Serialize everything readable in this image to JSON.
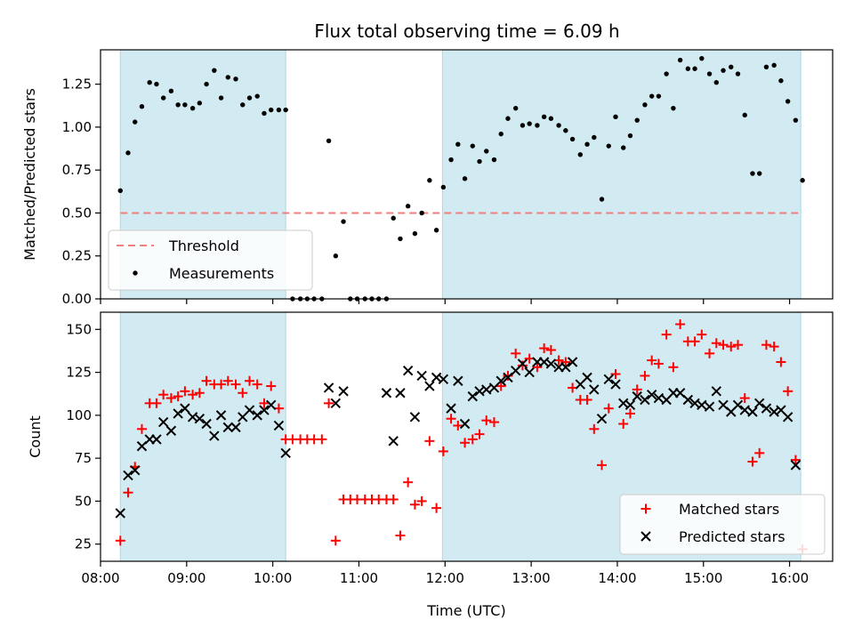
{
  "title": "Flux total observing time = 6.09 h",
  "colors": {
    "shade": "#add8e6",
    "threshold": "#f07e7e",
    "measurement": "#000000",
    "matched": "#ff0000",
    "predicted": "#000000"
  },
  "chart_data": [
    {
      "type": "scatter",
      "panel": "top",
      "ylabel": "Matched/Predicted stars",
      "xlim": [
        8.0,
        16.5
      ],
      "ylim": [
        0,
        1.45
      ],
      "yticks": [
        0.0,
        0.25,
        0.5,
        0.75,
        1.0,
        1.25
      ],
      "ytick_labels": [
        "0.00",
        "0.25",
        "0.50",
        "0.75",
        "1.00",
        "1.25"
      ],
      "shaded_spans": [
        [
          8.23,
          10.15
        ],
        [
          11.97,
          16.13
        ]
      ],
      "threshold": {
        "name": "Threshold",
        "y": 0.5,
        "x_range": [
          8.23,
          16.13
        ]
      },
      "legend": {
        "position": "lower-left",
        "entries": [
          "Threshold",
          "Measurements"
        ]
      },
      "series": [
        {
          "name": "Measurements",
          "x": [
            8.23,
            8.32,
            8.4,
            8.48,
            8.57,
            8.65,
            8.73,
            8.82,
            8.9,
            8.98,
            9.07,
            9.15,
            9.23,
            9.32,
            9.4,
            9.48,
            9.57,
            9.65,
            9.73,
            9.82,
            9.9,
            9.98,
            10.07,
            10.15,
            10.23,
            10.32,
            10.4,
            10.48,
            10.57,
            10.65,
            10.73,
            10.82,
            10.9,
            10.98,
            11.07,
            11.15,
            11.23,
            11.32,
            11.4,
            11.48,
            11.57,
            11.65,
            11.73,
            11.82,
            11.9,
            11.98,
            12.07,
            12.15,
            12.23,
            12.32,
            12.4,
            12.48,
            12.57,
            12.65,
            12.73,
            12.82,
            12.9,
            12.98,
            13.07,
            13.15,
            13.23,
            13.32,
            13.4,
            13.48,
            13.57,
            13.65,
            13.73,
            13.82,
            13.9,
            13.98,
            14.07,
            14.15,
            14.23,
            14.32,
            14.4,
            14.48,
            14.57,
            14.65,
            14.73,
            14.82,
            14.9,
            14.98,
            15.07,
            15.15,
            15.23,
            15.32,
            15.4,
            15.48,
            15.57,
            15.65,
            15.73,
            15.82,
            15.9,
            15.98,
            16.07,
            16.15
          ],
          "y": [
            0.63,
            0.85,
            1.03,
            1.12,
            1.26,
            1.25,
            1.17,
            1.21,
            1.13,
            1.13,
            1.11,
            1.14,
            1.25,
            1.33,
            1.17,
            1.29,
            1.28,
            1.13,
            1.17,
            1.18,
            1.08,
            1.1,
            1.1,
            1.1,
            0.0,
            0.0,
            0.0,
            0.0,
            0.0,
            0.92,
            0.25,
            0.45,
            0.0,
            0.0,
            0.0,
            0.0,
            0.0,
            0.0,
            0.47,
            0.35,
            0.54,
            0.38,
            0.5,
            0.69,
            0.4,
            0.65,
            0.81,
            0.9,
            0.7,
            0.89,
            0.8,
            0.86,
            0.81,
            0.96,
            1.05,
            1.11,
            1.01,
            1.02,
            1.01,
            1.06,
            1.05,
            1.01,
            0.98,
            0.93,
            0.84,
            0.9,
            0.94,
            0.58,
            0.89,
            1.06,
            0.88,
            0.95,
            1.04,
            1.13,
            1.18,
            1.18,
            1.31,
            1.11,
            1.39,
            1.34,
            1.34,
            1.4,
            1.31,
            1.26,
            1.33,
            1.35,
            1.31,
            1.07,
            0.73,
            0.73,
            1.35,
            1.36,
            1.27,
            1.15,
            1.04,
            0.69
          ]
        }
      ]
    },
    {
      "type": "scatter",
      "panel": "bottom",
      "xlabel": "Time (UTC)",
      "ylabel": "Count",
      "xlim": [
        8.0,
        16.5
      ],
      "ylim": [
        15,
        160
      ],
      "xticks": [
        8,
        9,
        10,
        11,
        12,
        13,
        14,
        15,
        16
      ],
      "xtick_labels": [
        "08:00",
        "09:00",
        "10:00",
        "11:00",
        "12:00",
        "13:00",
        "14:00",
        "15:00",
        "16:00"
      ],
      "yticks": [
        25,
        50,
        75,
        100,
        125,
        150
      ],
      "ytick_labels": [
        "25",
        "50",
        "75",
        "100",
        "125",
        "150"
      ],
      "shaded_spans": [
        [
          8.23,
          10.15
        ],
        [
          11.97,
          16.13
        ]
      ],
      "legend": {
        "position": "lower-right",
        "entries": [
          "Matched stars",
          "Predicted stars"
        ]
      },
      "series": [
        {
          "name": "Matched stars",
          "marker": "+",
          "x": [
            8.23,
            8.32,
            8.4,
            8.48,
            8.57,
            8.65,
            8.73,
            8.82,
            8.9,
            8.98,
            9.07,
            9.15,
            9.23,
            9.32,
            9.4,
            9.48,
            9.57,
            9.65,
            9.73,
            9.82,
            9.9,
            9.98,
            10.07,
            10.15,
            10.23,
            10.32,
            10.4,
            10.48,
            10.57,
            10.65,
            10.73,
            10.82,
            10.9,
            10.98,
            11.07,
            11.15,
            11.23,
            11.32,
            11.4,
            11.48,
            11.57,
            11.65,
            11.73,
            11.82,
            11.9,
            11.98,
            12.07,
            12.15,
            12.23,
            12.32,
            12.4,
            12.48,
            12.57,
            12.65,
            12.73,
            12.82,
            12.9,
            12.98,
            13.07,
            13.15,
            13.23,
            13.32,
            13.4,
            13.48,
            13.57,
            13.65,
            13.73,
            13.82,
            13.9,
            13.98,
            14.07,
            14.15,
            14.23,
            14.32,
            14.4,
            14.48,
            14.57,
            14.65,
            14.73,
            14.82,
            14.9,
            14.98,
            15.07,
            15.15,
            15.23,
            15.32,
            15.4,
            15.48,
            15.57,
            15.65,
            15.73,
            15.82,
            15.9,
            15.98,
            16.07,
            16.15
          ],
          "y": [
            27,
            55,
            70,
            92,
            107,
            107,
            112,
            110,
            111,
            114,
            112,
            113,
            120,
            118,
            118,
            120,
            118,
            113,
            120,
            118,
            107,
            117,
            104,
            86,
            86,
            86,
            86,
            86,
            86,
            107,
            27,
            51,
            51,
            51,
            51,
            51,
            51,
            51,
            51,
            30,
            61,
            48,
            50,
            85,
            46,
            79,
            98,
            94,
            84,
            86,
            89,
            97,
            96,
            117,
            123,
            136,
            129,
            133,
            128,
            139,
            138,
            132,
            131,
            116,
            109,
            109,
            92,
            71,
            104,
            124,
            95,
            101,
            115,
            123,
            132,
            130,
            147,
            128,
            153,
            143,
            143,
            147,
            136,
            142,
            141,
            140,
            141,
            110,
            73,
            78,
            141,
            140,
            131,
            114,
            74,
            22
          ]
        },
        {
          "name": "Predicted stars",
          "marker": "x",
          "x": [
            8.23,
            8.32,
            8.4,
            8.48,
            8.57,
            8.65,
            8.73,
            8.82,
            8.9,
            8.98,
            9.07,
            9.15,
            9.23,
            9.32,
            9.4,
            9.48,
            9.57,
            9.65,
            9.73,
            9.82,
            9.9,
            9.98,
            10.07,
            10.15,
            10.65,
            10.73,
            10.82,
            11.32,
            11.4,
            11.48,
            11.57,
            11.65,
            11.73,
            11.82,
            11.9,
            11.98,
            12.07,
            12.15,
            12.23,
            12.32,
            12.4,
            12.48,
            12.57,
            12.65,
            12.73,
            12.82,
            12.9,
            12.98,
            13.07,
            13.15,
            13.23,
            13.32,
            13.4,
            13.48,
            13.57,
            13.65,
            13.73,
            13.82,
            13.9,
            13.98,
            14.07,
            14.15,
            14.23,
            14.32,
            14.4,
            14.48,
            14.57,
            14.65,
            14.73,
            14.82,
            14.9,
            14.98,
            15.07,
            15.15,
            15.23,
            15.32,
            15.4,
            15.48,
            15.57,
            15.65,
            15.73,
            15.82,
            15.9,
            15.98,
            16.07
          ],
          "y": [
            43,
            65,
            68,
            82,
            86,
            86,
            96,
            91,
            101,
            104,
            99,
            98,
            95,
            88,
            100,
            93,
            93,
            99,
            103,
            100,
            103,
            106,
            94,
            78,
            116,
            107,
            114,
            113,
            85,
            113,
            126,
            99,
            123,
            117,
            122,
            121,
            104,
            120,
            95,
            111,
            114,
            115,
            116,
            120,
            122,
            126,
            130,
            125,
            131,
            131,
            130,
            128,
            128,
            131,
            118,
            122,
            115,
            98,
            121,
            118,
            107,
            106,
            111,
            109,
            112,
            110,
            109,
            113,
            113,
            109,
            107,
            106,
            105,
            114,
            106,
            102,
            106,
            103,
            102,
            107,
            104,
            102,
            103,
            99,
            71
          ]
        }
      ]
    }
  ]
}
